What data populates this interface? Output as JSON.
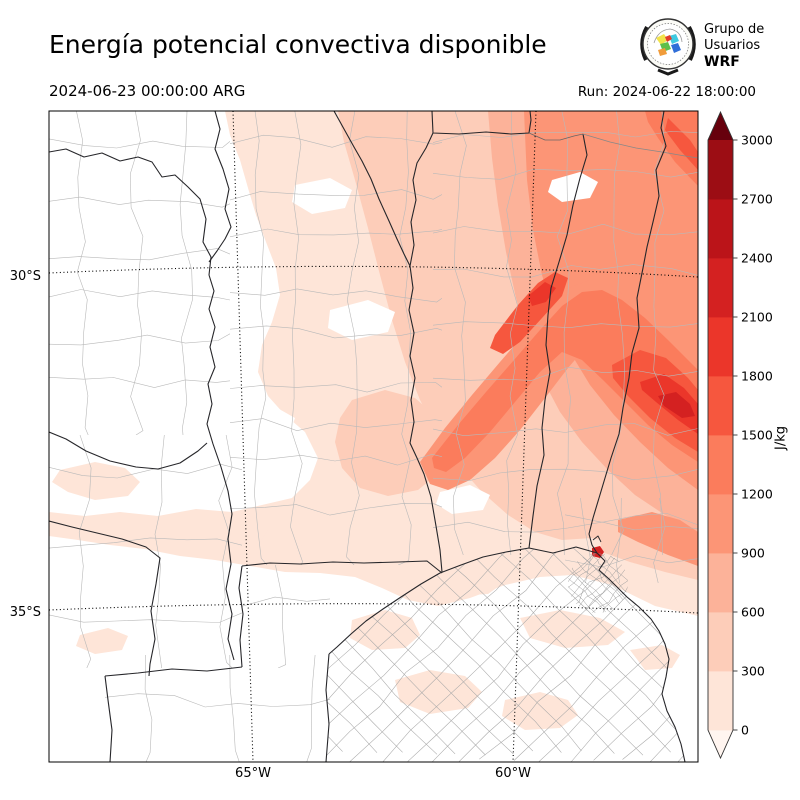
{
  "header": {
    "title": "Energía potencial convectiva disponible",
    "valid_time": "2024-06-23 00:00:00 ARG",
    "run_label": "Run: 2024-06-22 18:00:00",
    "logo": {
      "line1": "Grupo de",
      "line2": "Usuarios",
      "line3": "WRF"
    }
  },
  "axes": {
    "y_ticks": [
      "30°S",
      "35°S"
    ],
    "x_ticks": [
      "65°W",
      "60°W"
    ]
  },
  "chart_data": {
    "type": "heatmap",
    "title": "Energía potencial convectiva disponible",
    "variable": "CAPE (energía potencial convectiva disponible)",
    "units": "J/kg",
    "valid_time": "2024-06-23 00:00:00 ARG",
    "run": "Run: 2024-06-22 18:00:00",
    "x_tick_labels": [
      "65°W",
      "60°W"
    ],
    "y_tick_labels": [
      "30°S",
      "35°S"
    ],
    "grid": "dotted graticule at 30°S, 35°S, 65°W, 60°W",
    "legend_position": "right colorbar, extended arrows both ends",
    "colorbar": {
      "label": "J/kg",
      "ticks": [
        0,
        300,
        600,
        900,
        1200,
        1500,
        1800,
        2100,
        2400,
        2700,
        3000
      ],
      "colors_low_to_high": [
        "#fee5d8",
        "#fdcdb9",
        "#fcb299",
        "#fc9576",
        "#fb7c5c",
        "#f6573e",
        "#eb362a",
        "#d42121",
        "#bb1419",
        "#9c0d14"
      ],
      "under_color": "#fff5f0",
      "over_color": "#67000d",
      "extend": "both"
    },
    "field_summary": "CAPE near 0 J/kg over the west and southwest; broad 300–1200 J/kg over the northeast; diagonal band 1200–1800 J/kg from center toward the NE with maxima above 1800–2400 J/kg near the eastern edge"
  }
}
